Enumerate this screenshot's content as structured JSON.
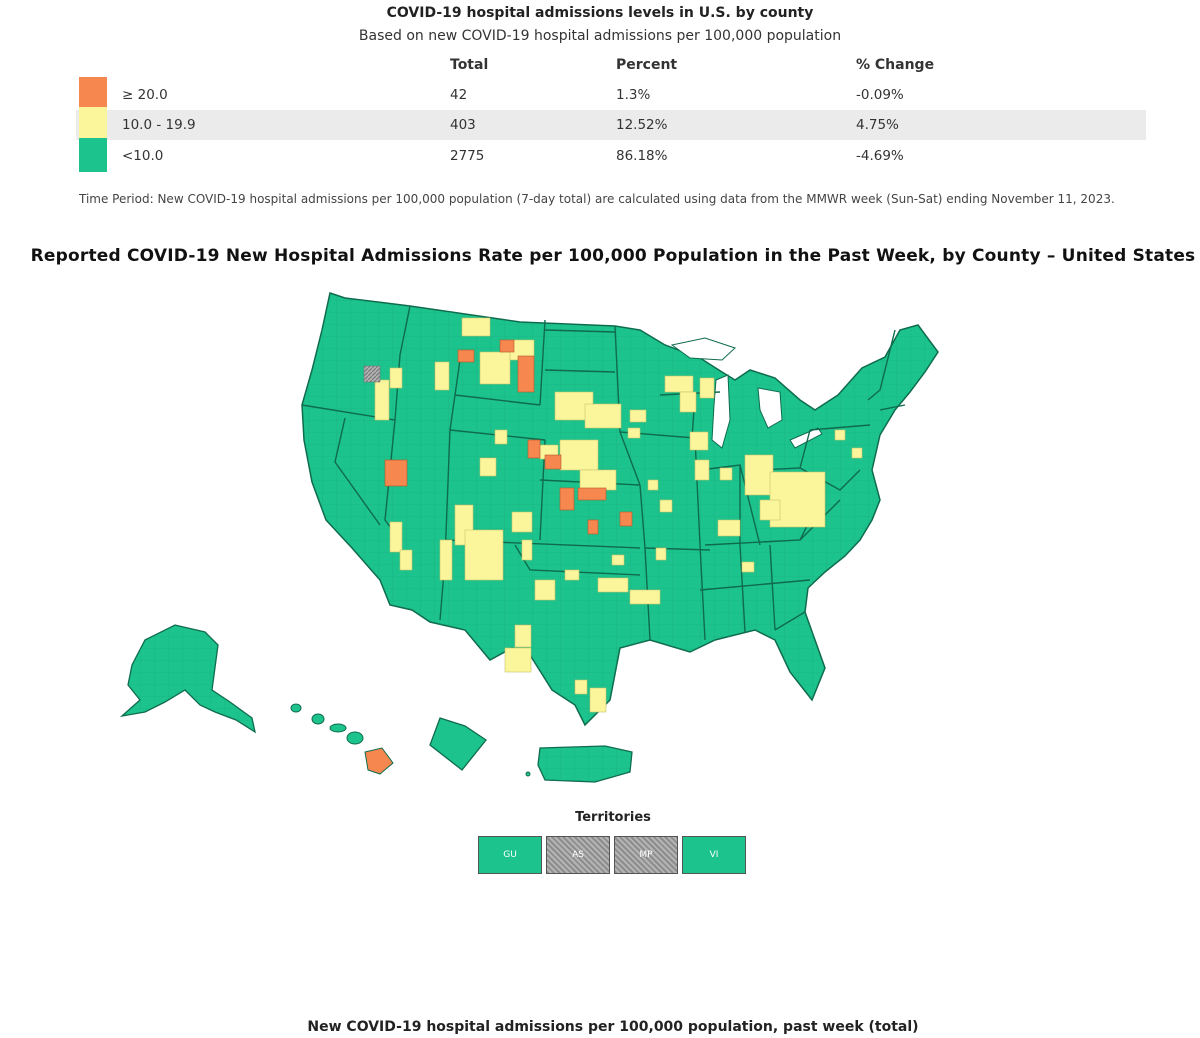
{
  "header": {
    "title": "COVID-19 hospital admissions levels in U.S. by county",
    "subtitle": "Based on new COVID-19 hospital admissions per 100,000 population"
  },
  "summary_table": {
    "columns": [
      "Total",
      "Percent",
      "% Change"
    ],
    "rows": [
      {
        "label": "≥ 20.0",
        "total": "42",
        "percent": "1.3%",
        "change": "-0.09%",
        "color": "#f5874f"
      },
      {
        "label": "10.0 - 19.9",
        "total": "403",
        "percent": "12.52%",
        "change": "4.75%",
        "color": "#fbf59b"
      },
      {
        "label": "<10.0",
        "total": "2775",
        "percent": "86.18%",
        "change": "-4.69%",
        "color": "#1cc38c"
      }
    ]
  },
  "time_period_note": "Time Period: New COVID-19 hospital admissions per 100,000 population (7-day total) are calculated using data from the MMWR week (Sun-Sat) ending November 11, 2023.",
  "map": {
    "title": "Reported COVID-19 New Hospital Admissions Rate per 100,000 Population in the Past Week, by County – United States",
    "colors": {
      "high": "#f5874f",
      "medium": "#fbf59b",
      "low": "#1cc38c",
      "no_data": "#9a9a9a",
      "border": "#0f6b4d"
    }
  },
  "territories": {
    "label": "Territories",
    "items": [
      {
        "code": "GU",
        "level": "low"
      },
      {
        "code": "AS",
        "level": "no_data"
      },
      {
        "code": "MP",
        "level": "no_data"
      },
      {
        "code": "VI",
        "level": "low"
      }
    ]
  },
  "footer_title": "New COVID-19 hospital admissions per 100,000 population, past week (total)"
}
